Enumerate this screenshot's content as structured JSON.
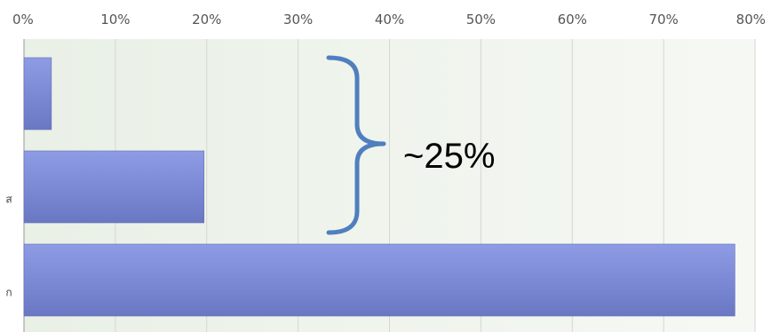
{
  "chart_data": {
    "type": "bar",
    "orientation": "horizontal",
    "categories": [
      "",
      "ส",
      "ก"
    ],
    "values": [
      3,
      19.7,
      77.8
    ],
    "value_unit": "%",
    "xlim": [
      0,
      80
    ],
    "x_ticks": [
      "0%",
      "10%",
      "20%",
      "30%",
      "40%",
      "50%",
      "60%",
      "70%",
      "80%"
    ],
    "grid": true,
    "tick_position": "top",
    "legend": "none",
    "bar_color": "#7f8fdb",
    "annotation": {
      "text": "~25%",
      "type": "brace",
      "spans_categories": [
        0,
        1
      ],
      "color": "#4f7fbf"
    }
  }
}
